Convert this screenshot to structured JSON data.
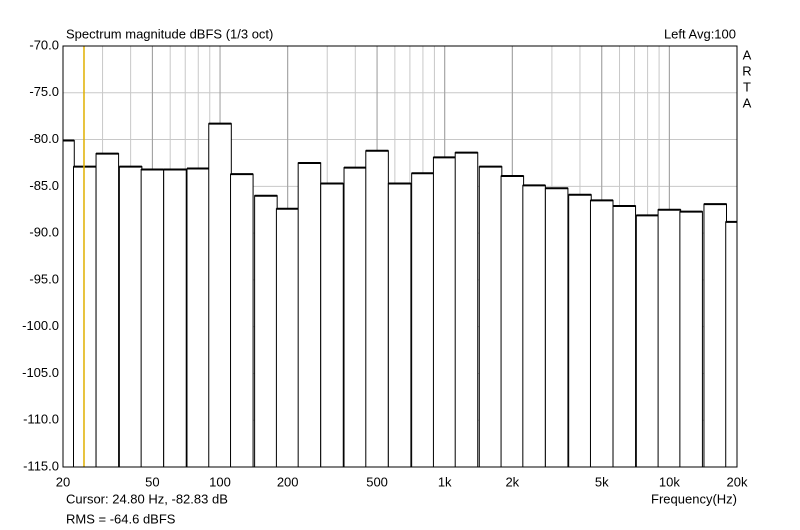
{
  "chart_data": {
    "type": "bar",
    "title": "Spectrum magnitude dBFS (1/3 oct)",
    "status": "Left  Avg:100",
    "brand": [
      "A",
      "R",
      "T",
      "A"
    ],
    "xlabel": "Frequency(Hz)",
    "x": [
      20,
      25,
      31.5,
      40,
      50,
      63,
      80,
      100,
      125,
      160,
      200,
      250,
      315,
      400,
      500,
      630,
      800,
      1000,
      1250,
      1600,
      2000,
      2500,
      3150,
      4000,
      5000,
      6300,
      8000,
      10000,
      12500,
      16000,
      20000
    ],
    "values": [
      -80.1,
      -82.9,
      -81.5,
      -82.9,
      -83.2,
      -83.2,
      -83.1,
      -78.3,
      -83.7,
      -86.0,
      -87.4,
      -82.5,
      -84.7,
      -83.0,
      -81.2,
      -84.7,
      -83.6,
      -81.9,
      -81.4,
      -82.9,
      -83.9,
      -84.9,
      -85.2,
      -85.9,
      -86.5,
      -87.1,
      -88.1,
      -87.5,
      -87.7,
      -86.9,
      -88.8
    ],
    "color": "#ffffff",
    "edge_color": "#000000",
    "xlim": [
      20,
      20000
    ],
    "xlog": true,
    "xticks": [
      20,
      50,
      100,
      200,
      500,
      {
        "value": 1000,
        "label": "1k"
      },
      {
        "value": 2000,
        "label": "2k"
      },
      {
        "value": 5000,
        "label": "5k"
      },
      {
        "value": 10000,
        "label": "10k"
      },
      {
        "value": 20000,
        "label": "20k"
      }
    ],
    "ylim": [
      -115,
      -70
    ],
    "yticks": [
      {
        "value": -70,
        "label": "-70.0"
      },
      {
        "value": -75,
        "label": "-75.0"
      },
      {
        "value": -80,
        "label": "-80.0"
      },
      {
        "value": -85,
        "label": "-85.0"
      },
      {
        "value": -90,
        "label": "-90.0"
      },
      {
        "value": -95,
        "label": "-95.0"
      },
      {
        "value": -100,
        "label": "-100.0"
      },
      {
        "value": -105,
        "label": "-105.0"
      },
      {
        "value": -110,
        "label": "-110.0"
      },
      {
        "value": -115,
        "label": "-115.0"
      }
    ],
    "grid": true,
    "cursor": {
      "x": 24.8,
      "y": -82.83,
      "color": "#e0b000",
      "label": "Cursor:   24.80 Hz, -82.83 dB"
    },
    "rms": {
      "label": "RMS =  -64.6 dBFS",
      "color": "#c00000"
    }
  }
}
